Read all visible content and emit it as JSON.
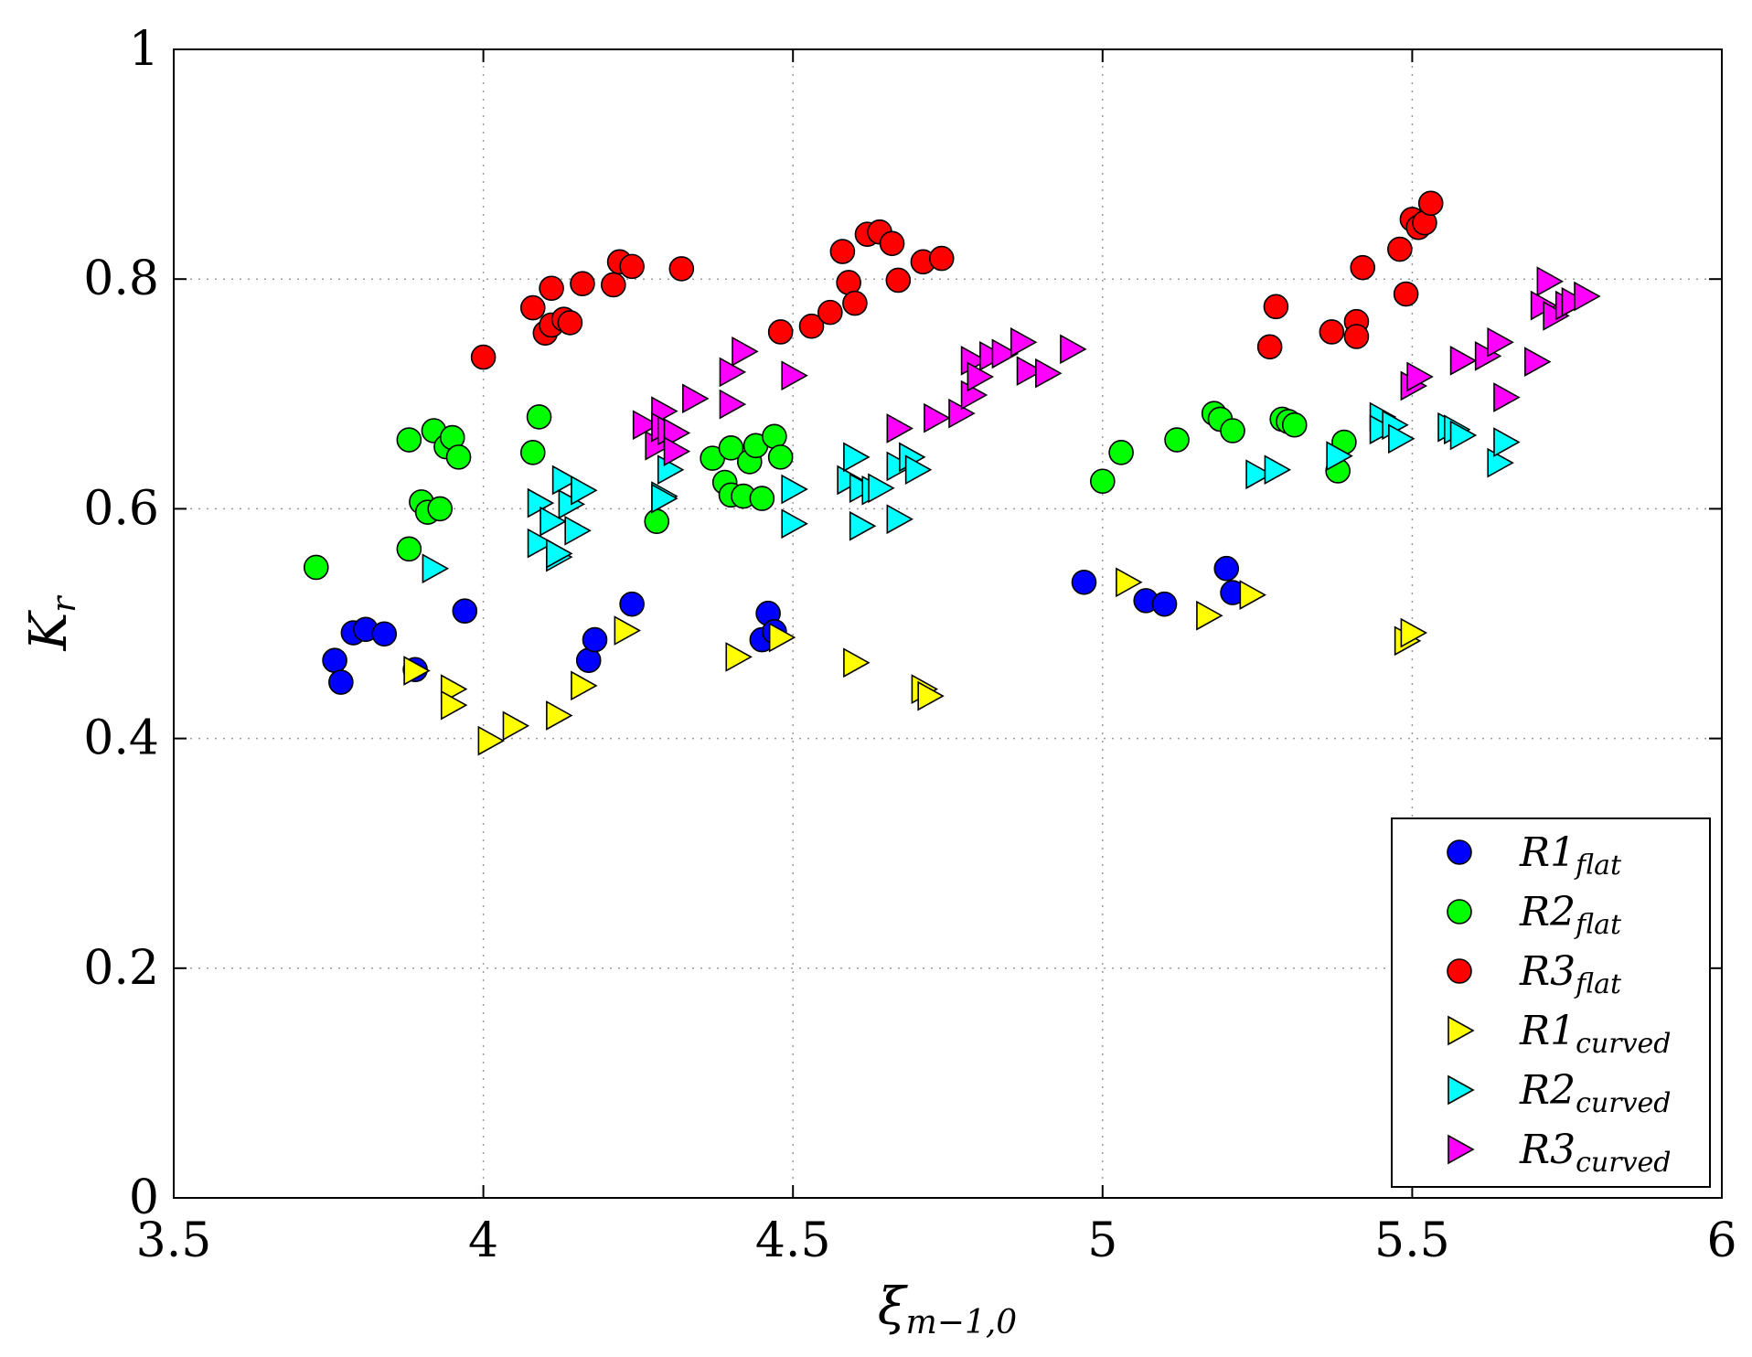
{
  "chart_data": {
    "type": "scatter",
    "title": "",
    "xlabel": {
      "main": "ξ",
      "sub": "m−1,0"
    },
    "ylabel": {
      "main": "K",
      "sub": "r"
    },
    "xlim": [
      3.5,
      6
    ],
    "ylim": [
      0,
      1
    ],
    "xticks": [
      3.5,
      4,
      4.5,
      5,
      5.5,
      6
    ],
    "xtick_labels": [
      "3.5",
      "4",
      "4.5",
      "5",
      "5.5",
      "6"
    ],
    "yticks": [
      0,
      0.2,
      0.4,
      0.6,
      0.8,
      1
    ],
    "ytick_labels": [
      "0",
      "0.2",
      "0.4",
      "0.6",
      "0.8",
      "1"
    ],
    "grid": true,
    "legend_position": "bottom-right",
    "series": [
      {
        "name": "R1",
        "sub": "flat",
        "marker": "circle",
        "color": "#0000ff",
        "x": [
          3.76,
          3.77,
          3.79,
          3.81,
          3.84,
          3.89,
          3.97,
          4.17,
          4.18,
          4.24,
          4.45,
          4.46,
          4.47,
          4.97,
          5.07,
          5.1,
          5.2,
          5.21
        ],
        "y": [
          0.468,
          0.449,
          0.492,
          0.495,
          0.491,
          0.46,
          0.511,
          0.468,
          0.486,
          0.517,
          0.486,
          0.509,
          0.493,
          0.536,
          0.52,
          0.517,
          0.548,
          0.527
        ]
      },
      {
        "name": "R2",
        "sub": "flat",
        "marker": "circle",
        "color": "#00ff00",
        "x": [
          3.73,
          3.88,
          3.88,
          3.9,
          3.91,
          3.92,
          3.93,
          3.94,
          3.95,
          3.96,
          4.08,
          4.09,
          4.28,
          4.37,
          4.39,
          4.4,
          4.4,
          4.42,
          4.43,
          4.44,
          4.45,
          4.47,
          4.48,
          5.0,
          5.03,
          5.12,
          5.18,
          5.19,
          5.21,
          5.29,
          5.3,
          5.31,
          5.38,
          5.39
        ],
        "y": [
          0.549,
          0.565,
          0.66,
          0.606,
          0.597,
          0.668,
          0.6,
          0.654,
          0.662,
          0.645,
          0.649,
          0.68,
          0.589,
          0.644,
          0.623,
          0.653,
          0.612,
          0.611,
          0.641,
          0.655,
          0.609,
          0.663,
          0.645,
          0.624,
          0.649,
          0.66,
          0.683,
          0.678,
          0.668,
          0.678,
          0.676,
          0.673,
          0.633,
          0.658
        ]
      },
      {
        "name": "R3",
        "sub": "flat",
        "marker": "circle",
        "color": "#ff0000",
        "x": [
          4.0,
          4.08,
          4.1,
          4.11,
          4.11,
          4.13,
          4.14,
          4.16,
          4.21,
          4.22,
          4.24,
          4.32,
          4.48,
          4.53,
          4.56,
          4.58,
          4.59,
          4.6,
          4.62,
          4.64,
          4.66,
          4.67,
          4.71,
          4.74,
          5.27,
          5.28,
          5.37,
          5.41,
          5.41,
          5.42,
          5.48,
          5.49,
          5.5,
          5.51,
          5.52,
          5.53
        ],
        "y": [
          0.732,
          0.775,
          0.753,
          0.76,
          0.792,
          0.765,
          0.762,
          0.796,
          0.795,
          0.815,
          0.811,
          0.809,
          0.754,
          0.759,
          0.771,
          0.824,
          0.797,
          0.779,
          0.839,
          0.841,
          0.831,
          0.799,
          0.815,
          0.818,
          0.741,
          0.776,
          0.754,
          0.763,
          0.75,
          0.81,
          0.826,
          0.787,
          0.852,
          0.845,
          0.849,
          0.866
        ]
      },
      {
        "name": "R1",
        "sub": "curved",
        "marker": "triangle",
        "color": "#ffff00",
        "x": [
          3.89,
          3.95,
          3.95,
          4.01,
          4.05,
          4.12,
          4.16,
          4.23,
          4.41,
          4.48,
          4.6,
          4.71,
          4.72,
          5.04,
          5.17,
          5.24,
          5.49,
          5.5
        ],
        "y": [
          0.459,
          0.443,
          0.429,
          0.398,
          0.411,
          0.42,
          0.446,
          0.494,
          0.471,
          0.488,
          0.466,
          0.443,
          0.437,
          0.536,
          0.507,
          0.525,
          0.485,
          0.492
        ]
      },
      {
        "name": "R2",
        "sub": "curved",
        "marker": "triangle",
        "color": "#00ffff",
        "x": [
          3.92,
          4.09,
          4.09,
          4.11,
          4.12,
          4.12,
          4.13,
          4.14,
          4.15,
          4.16,
          4.29,
          4.29,
          4.3,
          4.5,
          4.5,
          4.59,
          4.6,
          4.61,
          4.61,
          4.63,
          4.64,
          4.67,
          4.67,
          4.69,
          4.7,
          5.25,
          5.28,
          5.38,
          5.45,
          5.45,
          5.47,
          5.48,
          5.56,
          5.57,
          5.58,
          5.64,
          5.65
        ],
        "y": [
          0.548,
          0.605,
          0.57,
          0.589,
          0.558,
          0.561,
          0.625,
          0.604,
          0.581,
          0.616,
          0.611,
          0.609,
          0.634,
          0.617,
          0.587,
          0.625,
          0.645,
          0.585,
          0.618,
          0.616,
          0.618,
          0.637,
          0.591,
          0.645,
          0.634,
          0.63,
          0.634,
          0.646,
          0.68,
          0.669,
          0.673,
          0.661,
          0.671,
          0.669,
          0.664,
          0.64,
          0.658
        ]
      },
      {
        "name": "R3",
        "sub": "curved",
        "marker": "triangle",
        "color": "#ff00ff",
        "x": [
          4.26,
          4.28,
          4.29,
          4.29,
          4.3,
          4.31,
          4.31,
          4.34,
          4.4,
          4.4,
          4.42,
          4.5,
          4.67,
          4.73,
          4.77,
          4.79,
          4.79,
          4.8,
          4.82,
          4.84,
          4.87,
          4.88,
          4.91,
          4.95,
          5.5,
          5.51,
          5.58,
          5.62,
          5.64,
          5.65,
          5.7,
          5.71,
          5.72,
          5.73,
          5.75,
          5.76,
          5.78
        ],
        "y": [
          0.673,
          0.655,
          0.685,
          0.671,
          0.668,
          0.666,
          0.65,
          0.696,
          0.691,
          0.719,
          0.737,
          0.716,
          0.67,
          0.679,
          0.683,
          0.699,
          0.729,
          0.715,
          0.733,
          0.735,
          0.745,
          0.72,
          0.718,
          0.739,
          0.707,
          0.715,
          0.729,
          0.733,
          0.745,
          0.697,
          0.728,
          0.777,
          0.798,
          0.768,
          0.777,
          0.78,
          0.785
        ]
      }
    ]
  }
}
